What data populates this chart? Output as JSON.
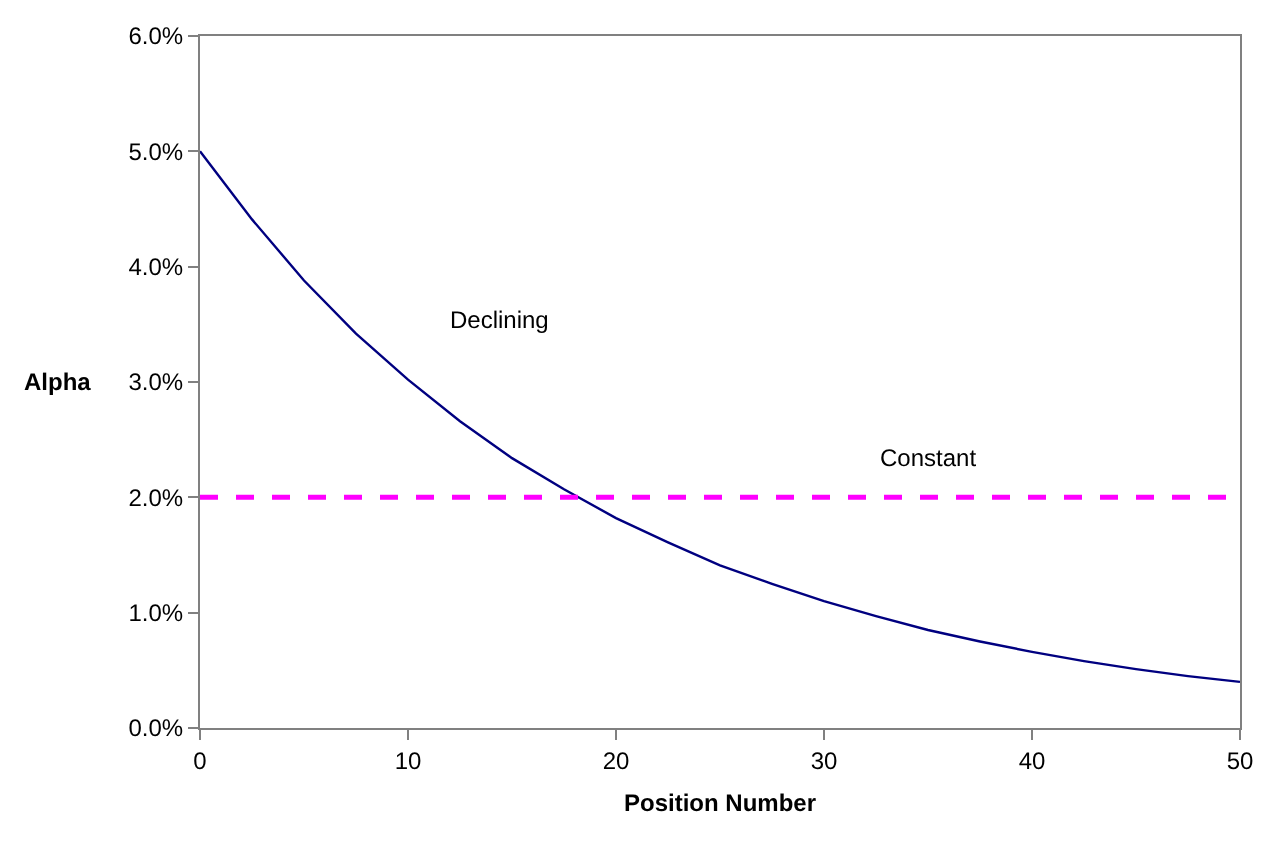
{
  "chart_data": {
    "type": "line",
    "xlabel": "Position Number",
    "ylabel": "Alpha",
    "marker": "none",
    "grid": false,
    "legend": false,
    "xlim": [
      0,
      50
    ],
    "xticks": [
      0,
      10,
      20,
      30,
      40,
      50
    ],
    "ylim": [
      0,
      6
    ],
    "yticks": [
      {
        "value": 0,
        "label": "0.0%"
      },
      {
        "value": 1,
        "label": "1.0%"
      },
      {
        "value": 2,
        "label": "2.0%"
      },
      {
        "value": 3,
        "label": "3.0%"
      },
      {
        "value": 4,
        "label": "4.0%"
      },
      {
        "value": 5,
        "label": "5.0%"
      },
      {
        "value": 6,
        "label": "6.0%"
      }
    ],
    "series": [
      {
        "name": "Declining",
        "color": "#000080",
        "line_style": "solid",
        "x": [
          0,
          2.5,
          5,
          7.5,
          10,
          12.5,
          15,
          17.5,
          20,
          22.5,
          25,
          27.5,
          30,
          32.5,
          35,
          37.5,
          40,
          42.5,
          45,
          47.5,
          50
        ],
        "values": [
          5.0,
          4.41,
          3.88,
          3.42,
          3.02,
          2.66,
          2.34,
          2.07,
          1.82,
          1.61,
          1.41,
          1.25,
          1.1,
          0.97,
          0.85,
          0.75,
          0.66,
          0.58,
          0.51,
          0.45,
          0.4
        ]
      },
      {
        "name": "Constant",
        "color": "#ff00ff",
        "line_style": "dashed",
        "x": [
          0,
          50
        ],
        "values": [
          2,
          2
        ]
      }
    ]
  }
}
